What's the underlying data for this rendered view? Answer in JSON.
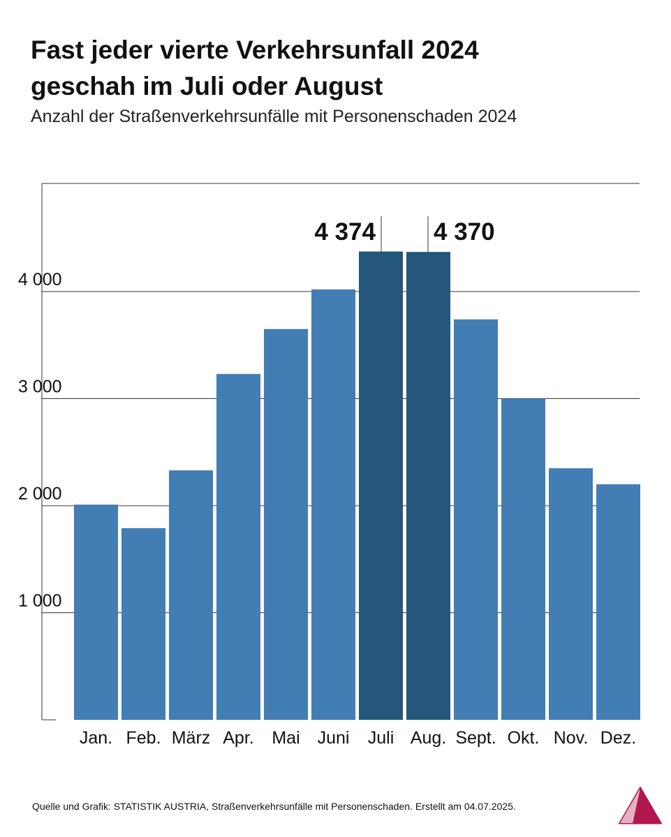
{
  "header": {
    "title_line1": "Fast jeder vierte Verkehrsunfall 2024",
    "title_line2": "geschah im Juli oder August",
    "subtitle": "Anzahl der Straßenverkehrsunfälle mit Personenschaden 2024"
  },
  "footer": {
    "source": "Quelle und Grafik: STATISTIK AUSTRIA, Straßenverkehrsunfälle mit Personenschaden. Erstellt am 04.07.2025."
  },
  "colors": {
    "bar": "#427db4",
    "bar_highlight": "#24577b",
    "grid": "#333333",
    "logo": "#b0164f"
  },
  "icons": {
    "logo": "statistik-austria-triangle-logo"
  },
  "chart_data": {
    "type": "bar",
    "categories": [
      "Jan.",
      "Feb.",
      "März",
      "Apr.",
      "Mai",
      "Juni",
      "Juli",
      "Aug.",
      "Sept.",
      "Okt.",
      "Nov.",
      "Dez."
    ],
    "values": [
      2010,
      1790,
      2330,
      3230,
      3650,
      4020,
      4374,
      4370,
      3740,
      3000,
      2350,
      2200
    ],
    "highlight": [
      "Juli",
      "Aug."
    ],
    "data_labels": [
      {
        "category": "Juli",
        "text": "4 374"
      },
      {
        "category": "Aug.",
        "text": "4 370"
      }
    ],
    "yticks": [
      1000,
      2000,
      3000,
      4000
    ],
    "ytick_labels": [
      "1 000",
      "2 000",
      "3 000",
      "4 000"
    ],
    "ylim": [
      0,
      5000
    ],
    "grid": true,
    "xlabel": "",
    "ylabel": ""
  }
}
